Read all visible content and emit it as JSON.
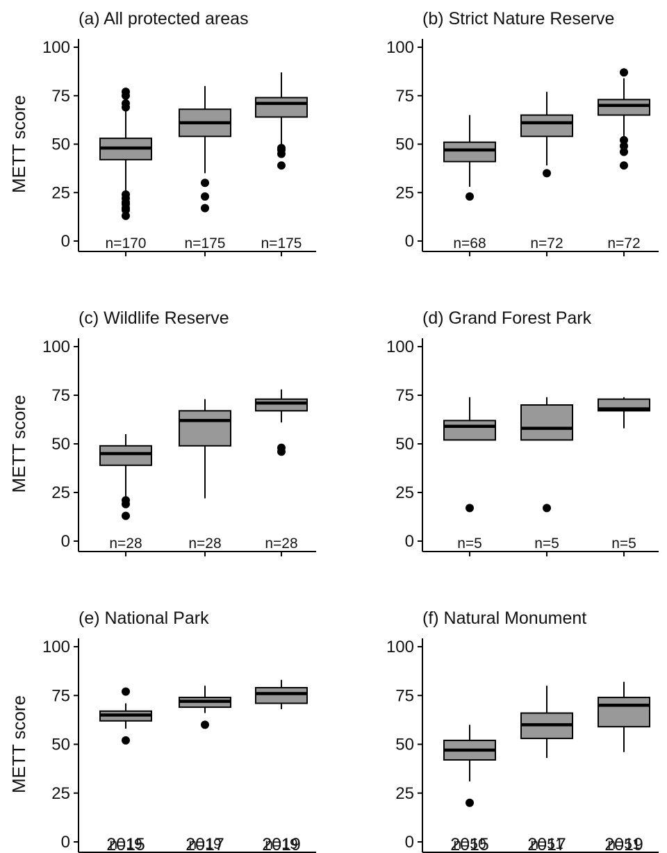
{
  "chart_data": [
    {
      "type": "box",
      "title": "(a) All protected areas",
      "ylabel": "METT score",
      "xlabel": "",
      "ylim": [
        0,
        100
      ],
      "yticks": [
        "0",
        "25",
        "50",
        "75",
        "100"
      ],
      "categories": [
        "2015",
        "2017",
        "2019"
      ],
      "boxes": [
        {
          "year": "2015",
          "min": 26,
          "q1": 42,
          "median": 48,
          "q3": 53,
          "max": 69,
          "outliers": [
            77,
            75,
            71,
            69,
            24,
            22,
            20,
            19,
            17,
            16,
            13
          ],
          "n": "n=170"
        },
        {
          "year": "2017",
          "min": 35,
          "q1": 54,
          "median": 61,
          "q3": 68,
          "max": 80,
          "outliers": [
            30,
            23,
            17
          ],
          "n": "n=175"
        },
        {
          "year": "2019",
          "min": 49,
          "q1": 64,
          "median": 71,
          "q3": 74,
          "max": 87,
          "outliers": [
            48,
            47,
            45,
            39
          ],
          "n": "n=175"
        }
      ]
    },
    {
      "type": "box",
      "title": "(b) Strict Nature Reserve",
      "ylabel": "",
      "xlabel": "",
      "ylim": [
        0,
        100
      ],
      "yticks": [
        "0",
        "25",
        "50",
        "75",
        "100"
      ],
      "categories": [
        "2015",
        "2017",
        "2019"
      ],
      "boxes": [
        {
          "year": "2015",
          "min": 28,
          "q1": 41,
          "median": 47,
          "q3": 51,
          "max": 65,
          "outliers": [
            23
          ],
          "n": "n=68"
        },
        {
          "year": "2017",
          "min": 39,
          "q1": 54,
          "median": 61,
          "q3": 65,
          "max": 77,
          "outliers": [
            35
          ],
          "n": "n=72"
        },
        {
          "year": "2019",
          "min": 53,
          "q1": 65,
          "median": 70,
          "q3": 73,
          "max": 84,
          "outliers": [
            87,
            52,
            49,
            46,
            39
          ],
          "n": "n=72"
        }
      ]
    },
    {
      "type": "box",
      "title": "(c) Wildlife Reserve",
      "ylabel": "METT score",
      "xlabel": "",
      "ylim": [
        0,
        100
      ],
      "yticks": [
        "0",
        "25",
        "50",
        "75",
        "100"
      ],
      "categories": [
        "2015",
        "2017",
        "2019"
      ],
      "boxes": [
        {
          "year": "2015",
          "min": 23,
          "q1": 39,
          "median": 45,
          "q3": 49,
          "max": 55,
          "outliers": [
            21,
            19,
            13
          ],
          "n": "n=28"
        },
        {
          "year": "2017",
          "min": 22,
          "q1": 49,
          "median": 62,
          "q3": 67,
          "max": 73,
          "outliers": [],
          "n": "n=28"
        },
        {
          "year": "2019",
          "min": 61,
          "q1": 67,
          "median": 71,
          "q3": 73,
          "max": 78,
          "outliers": [
            48,
            46
          ],
          "n": "n=28"
        }
      ]
    },
    {
      "type": "box",
      "title": "(d) Grand Forest Park",
      "ylabel": "",
      "xlabel": "",
      "ylim": [
        0,
        100
      ],
      "yticks": [
        "0",
        "25",
        "50",
        "75",
        "100"
      ],
      "categories": [
        "2015",
        "2017",
        "2019"
      ],
      "boxes": [
        {
          "year": "2015",
          "min": 52,
          "q1": 52,
          "median": 59,
          "q3": 62,
          "max": 74,
          "outliers": [
            17
          ],
          "n": "n=5"
        },
        {
          "year": "2017",
          "min": 52,
          "q1": 52,
          "median": 58,
          "q3": 70,
          "max": 74,
          "outliers": [
            17
          ],
          "n": "n=5"
        },
        {
          "year": "2019",
          "min": 58,
          "q1": 67,
          "median": 68,
          "q3": 73,
          "max": 74,
          "outliers": [],
          "n": "n=5"
        }
      ]
    },
    {
      "type": "box",
      "title": "(e) National Park",
      "ylabel": "METT score",
      "xlabel": "",
      "ylim": [
        0,
        100
      ],
      "yticks": [
        "0",
        "25",
        "50",
        "75",
        "100"
      ],
      "categories": [
        "2015",
        "2017",
        "2019"
      ],
      "boxes": [
        {
          "year": "2015",
          "min": 58,
          "q1": 62,
          "median": 65,
          "q3": 67,
          "max": 71,
          "outliers": [
            77,
            52
          ],
          "n": "n=19"
        },
        {
          "year": "2017",
          "min": 66,
          "q1": 69,
          "median": 72,
          "q3": 74,
          "max": 80,
          "outliers": [
            60
          ],
          "n": "n=19"
        },
        {
          "year": "2019",
          "min": 68,
          "q1": 71,
          "median": 76,
          "q3": 79,
          "max": 83,
          "outliers": [],
          "n": "n=19"
        }
      ]
    },
    {
      "type": "box",
      "title": "(f) Natural Monument",
      "ylabel": "",
      "xlabel": "",
      "ylim": [
        0,
        100
      ],
      "yticks": [
        "0",
        "25",
        "50",
        "75",
        "100"
      ],
      "categories": [
        "2015",
        "2017",
        "2019"
      ],
      "boxes": [
        {
          "year": "2015",
          "min": 31,
          "q1": 42,
          "median": 47,
          "q3": 52,
          "max": 60,
          "outliers": [
            20
          ],
          "n": "n=50"
        },
        {
          "year": "2017",
          "min": 43,
          "q1": 53,
          "median": 60,
          "q3": 66,
          "max": 80,
          "outliers": [],
          "n": "n=51"
        },
        {
          "year": "2019",
          "min": 46,
          "q1": 59,
          "median": 70,
          "q3": 74,
          "max": 82,
          "outliers": [],
          "n": "n=51"
        }
      ]
    }
  ],
  "colors": {
    "box_fill": "#999999",
    "stroke": "#000000",
    "background": "#ffffff"
  }
}
